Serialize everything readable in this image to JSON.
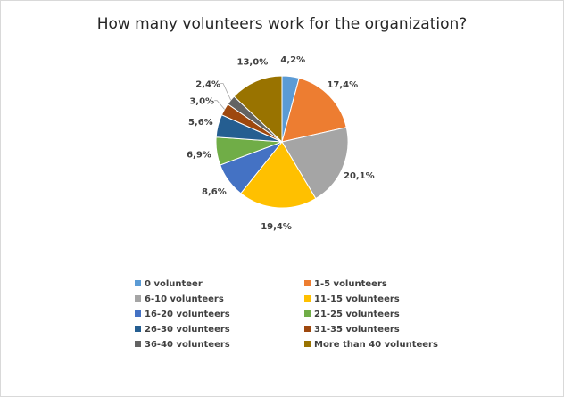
{
  "chart_data": {
    "type": "pie",
    "title": "How many volunteers work for the organization?",
    "categories": [
      "0 volunteer",
      "1-5 volunteers",
      "6-10 volunteers",
      "11-15 volunteers",
      "16-20 volunteers",
      "21-25 volunteers",
      "26-30 volunteers",
      "31-35 volunteers",
      "36-40 volunteers",
      "More than 40 volunteers"
    ],
    "values": [
      4.2,
      17.4,
      20.1,
      19.4,
      8.6,
      6.9,
      5.6,
      3.0,
      2.4,
      13.0
    ],
    "value_labels": [
      "4,2%",
      "17,4%",
      "20,1%",
      "19,4%",
      "8,6%",
      "6,9%",
      "5,6%",
      "3,0%",
      "2,4%",
      "13,0%"
    ],
    "colors": [
      "#5b9bd5",
      "#ed7d31",
      "#a5a5a5",
      "#ffc000",
      "#4472c4",
      "#70ad47",
      "#255e91",
      "#9e480e",
      "#636363",
      "#997300"
    ],
    "legend_position": "bottom"
  }
}
